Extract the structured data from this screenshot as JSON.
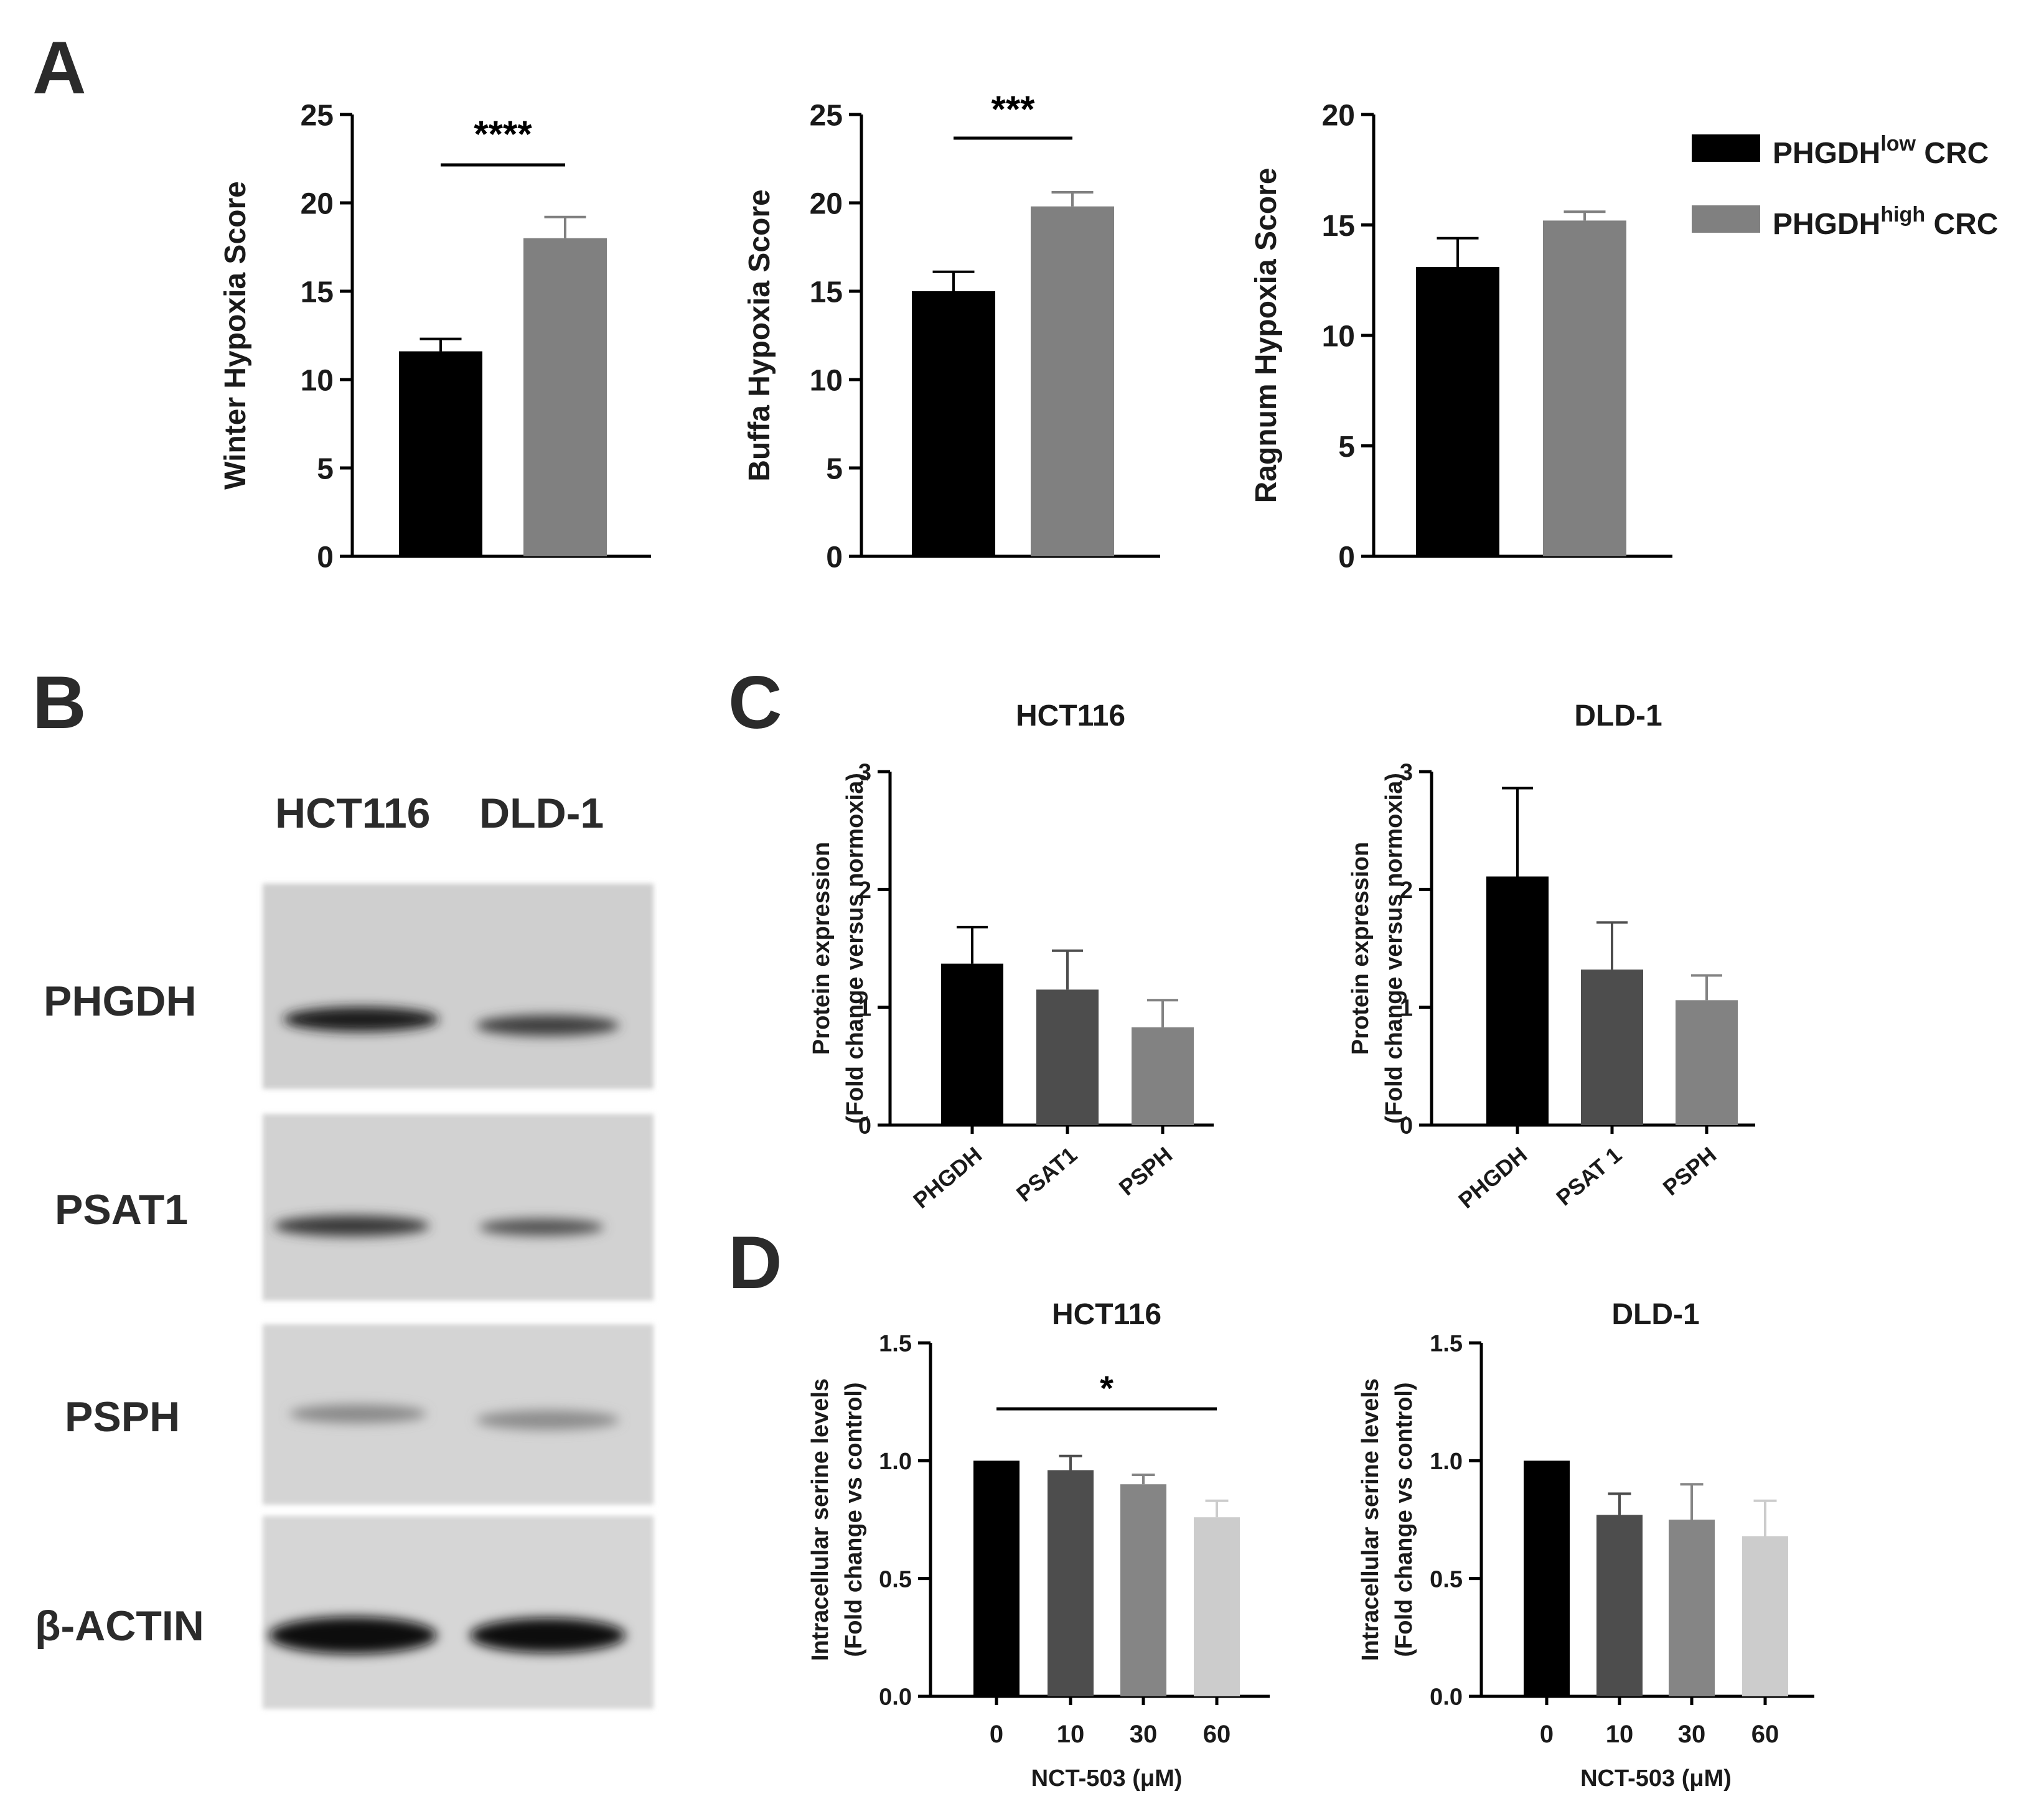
{
  "panels": {
    "a": "A",
    "b": "B",
    "c": "C",
    "d": "D"
  },
  "legend": {
    "items": [
      {
        "base": "PHGDH",
        "sup": "low",
        "suffix": " CRC",
        "color": "#000000"
      },
      {
        "base": "PHGDH",
        "sup": "high",
        "suffix": " CRC",
        "color": "#808080"
      }
    ]
  },
  "western_blot": {
    "cell_lines": [
      "HCT116",
      "DLD-1"
    ],
    "proteins": [
      "PHGDH",
      "PSAT1",
      "PSPH",
      "β-ACTIN"
    ]
  },
  "chart_data": [
    {
      "id": "a1",
      "type": "bar",
      "title": "",
      "categories": [
        "PHGDH low CRC",
        "PHGDH high CRC"
      ],
      "values": [
        11.6,
        18.0
      ],
      "errors": [
        0.7,
        1.2
      ],
      "colors": [
        "#000000",
        "#808080"
      ],
      "ylabel": "Winter Hypoxia Score",
      "xlabel": "",
      "ylim": [
        0,
        25
      ],
      "yticks": [
        "0",
        "5",
        "10",
        "15",
        "20",
        "25"
      ],
      "ytickvals": [
        0,
        5,
        10,
        15,
        20,
        25
      ],
      "xticklabels": [],
      "significance": {
        "label": "****",
        "from": 0,
        "to": 1
      }
    },
    {
      "id": "a2",
      "type": "bar",
      "title": "",
      "categories": [
        "PHGDH low CRC",
        "PHGDH high CRC"
      ],
      "values": [
        15.0,
        19.8
      ],
      "errors": [
        1.1,
        0.8
      ],
      "colors": [
        "#000000",
        "#808080"
      ],
      "ylabel": "Buffa Hypoxia Score",
      "xlabel": "",
      "ylim": [
        0,
        25
      ],
      "yticks": [
        "0",
        "5",
        "10",
        "15",
        "20",
        "25"
      ],
      "ytickvals": [
        0,
        5,
        10,
        15,
        20,
        25
      ],
      "xticklabels": [],
      "significance": {
        "label": "***",
        "from": 0,
        "to": 1
      }
    },
    {
      "id": "a3",
      "type": "bar",
      "title": "",
      "categories": [
        "PHGDH low CRC",
        "PHGDH high CRC"
      ],
      "values": [
        13.1,
        15.2
      ],
      "errors": [
        1.3,
        0.4
      ],
      "colors": [
        "#000000",
        "#808080"
      ],
      "ylabel": "Ragnum Hypoxia Score",
      "xlabel": "",
      "ylim": [
        0,
        20
      ],
      "yticks": [
        "0",
        "5",
        "10",
        "15",
        "20"
      ],
      "ytickvals": [
        0,
        5,
        10,
        15,
        20
      ],
      "xticklabels": []
    },
    {
      "id": "c1",
      "type": "bar",
      "title": "HCT116",
      "categories": [
        "PHGDH",
        "PSAT1",
        "PSPH"
      ],
      "values": [
        1.37,
        1.15,
        0.83
      ],
      "errors": [
        0.31,
        0.33,
        0.23
      ],
      "colors": [
        "#000000",
        "#4d4d4d",
        "#828282"
      ],
      "ylabel": "Protein expression",
      "ylabel2": "(Fold change versus normoxia)",
      "xlabel": "",
      "ylim": [
        0,
        3
      ],
      "yticks": [
        "0",
        "1",
        "2",
        "3"
      ],
      "ytickvals": [
        0,
        1,
        2,
        3
      ],
      "xticklabels": [
        "PHGDH",
        "PSAT1",
        "PSPH"
      ]
    },
    {
      "id": "c2",
      "type": "bar",
      "title": "DLD-1",
      "categories": [
        "PHGDH",
        "PSAT 1",
        "PSPH"
      ],
      "values": [
        2.11,
        1.32,
        1.06
      ],
      "errors": [
        0.75,
        0.4,
        0.21
      ],
      "colors": [
        "#000000",
        "#4d4d4d",
        "#828282"
      ],
      "ylabel": "Protein expression",
      "ylabel2": "(Fold change versus normoxia)",
      "xlabel": "",
      "ylim": [
        0,
        3
      ],
      "yticks": [
        "0",
        "1",
        "2",
        "3"
      ],
      "ytickvals": [
        0,
        1,
        2,
        3
      ],
      "xticklabels": [
        "PHGDH",
        "PSAT 1",
        "PSPH"
      ]
    },
    {
      "id": "d1",
      "type": "bar",
      "title": "HCT116",
      "categories": [
        "0",
        "10",
        "30",
        "60"
      ],
      "values": [
        1.0,
        0.96,
        0.9,
        0.76
      ],
      "errors": [
        0,
        0.06,
        0.04,
        0.07
      ],
      "colors": [
        "#000000",
        "#4d4d4d",
        "#858585",
        "#cccccc"
      ],
      "ylabel": "Intracellular serine levels",
      "ylabel2": "(Fold change vs control)",
      "xlabel": "NCT-503 (μM)",
      "ylim": [
        0,
        1.5
      ],
      "yticks": [
        "0.0",
        "0.5",
        "1.0",
        "1.5"
      ],
      "ytickvals": [
        0,
        0.5,
        1.0,
        1.5
      ],
      "xticklabels": [
        "0",
        "10",
        "30",
        "60"
      ],
      "significance": {
        "label": "*",
        "from": 0,
        "to": 3
      }
    },
    {
      "id": "d2",
      "type": "bar",
      "title": "DLD-1",
      "categories": [
        "0",
        "10",
        "30",
        "60"
      ],
      "values": [
        1.0,
        0.77,
        0.75,
        0.68
      ],
      "errors": [
        0,
        0.09,
        0.15,
        0.15
      ],
      "colors": [
        "#000000",
        "#4d4d4d",
        "#858585",
        "#cccccc"
      ],
      "ylabel": "Intracellular serine levels",
      "ylabel2": "(Fold change vs control)",
      "xlabel": "NCT-503 (μM)",
      "ylim": [
        0,
        1.5
      ],
      "yticks": [
        "0.0",
        "0.5",
        "1.0",
        "1.5"
      ],
      "ytickvals": [
        0,
        0.5,
        1.0,
        1.5
      ],
      "xticklabels": [
        "0",
        "10",
        "30",
        "60"
      ]
    }
  ]
}
